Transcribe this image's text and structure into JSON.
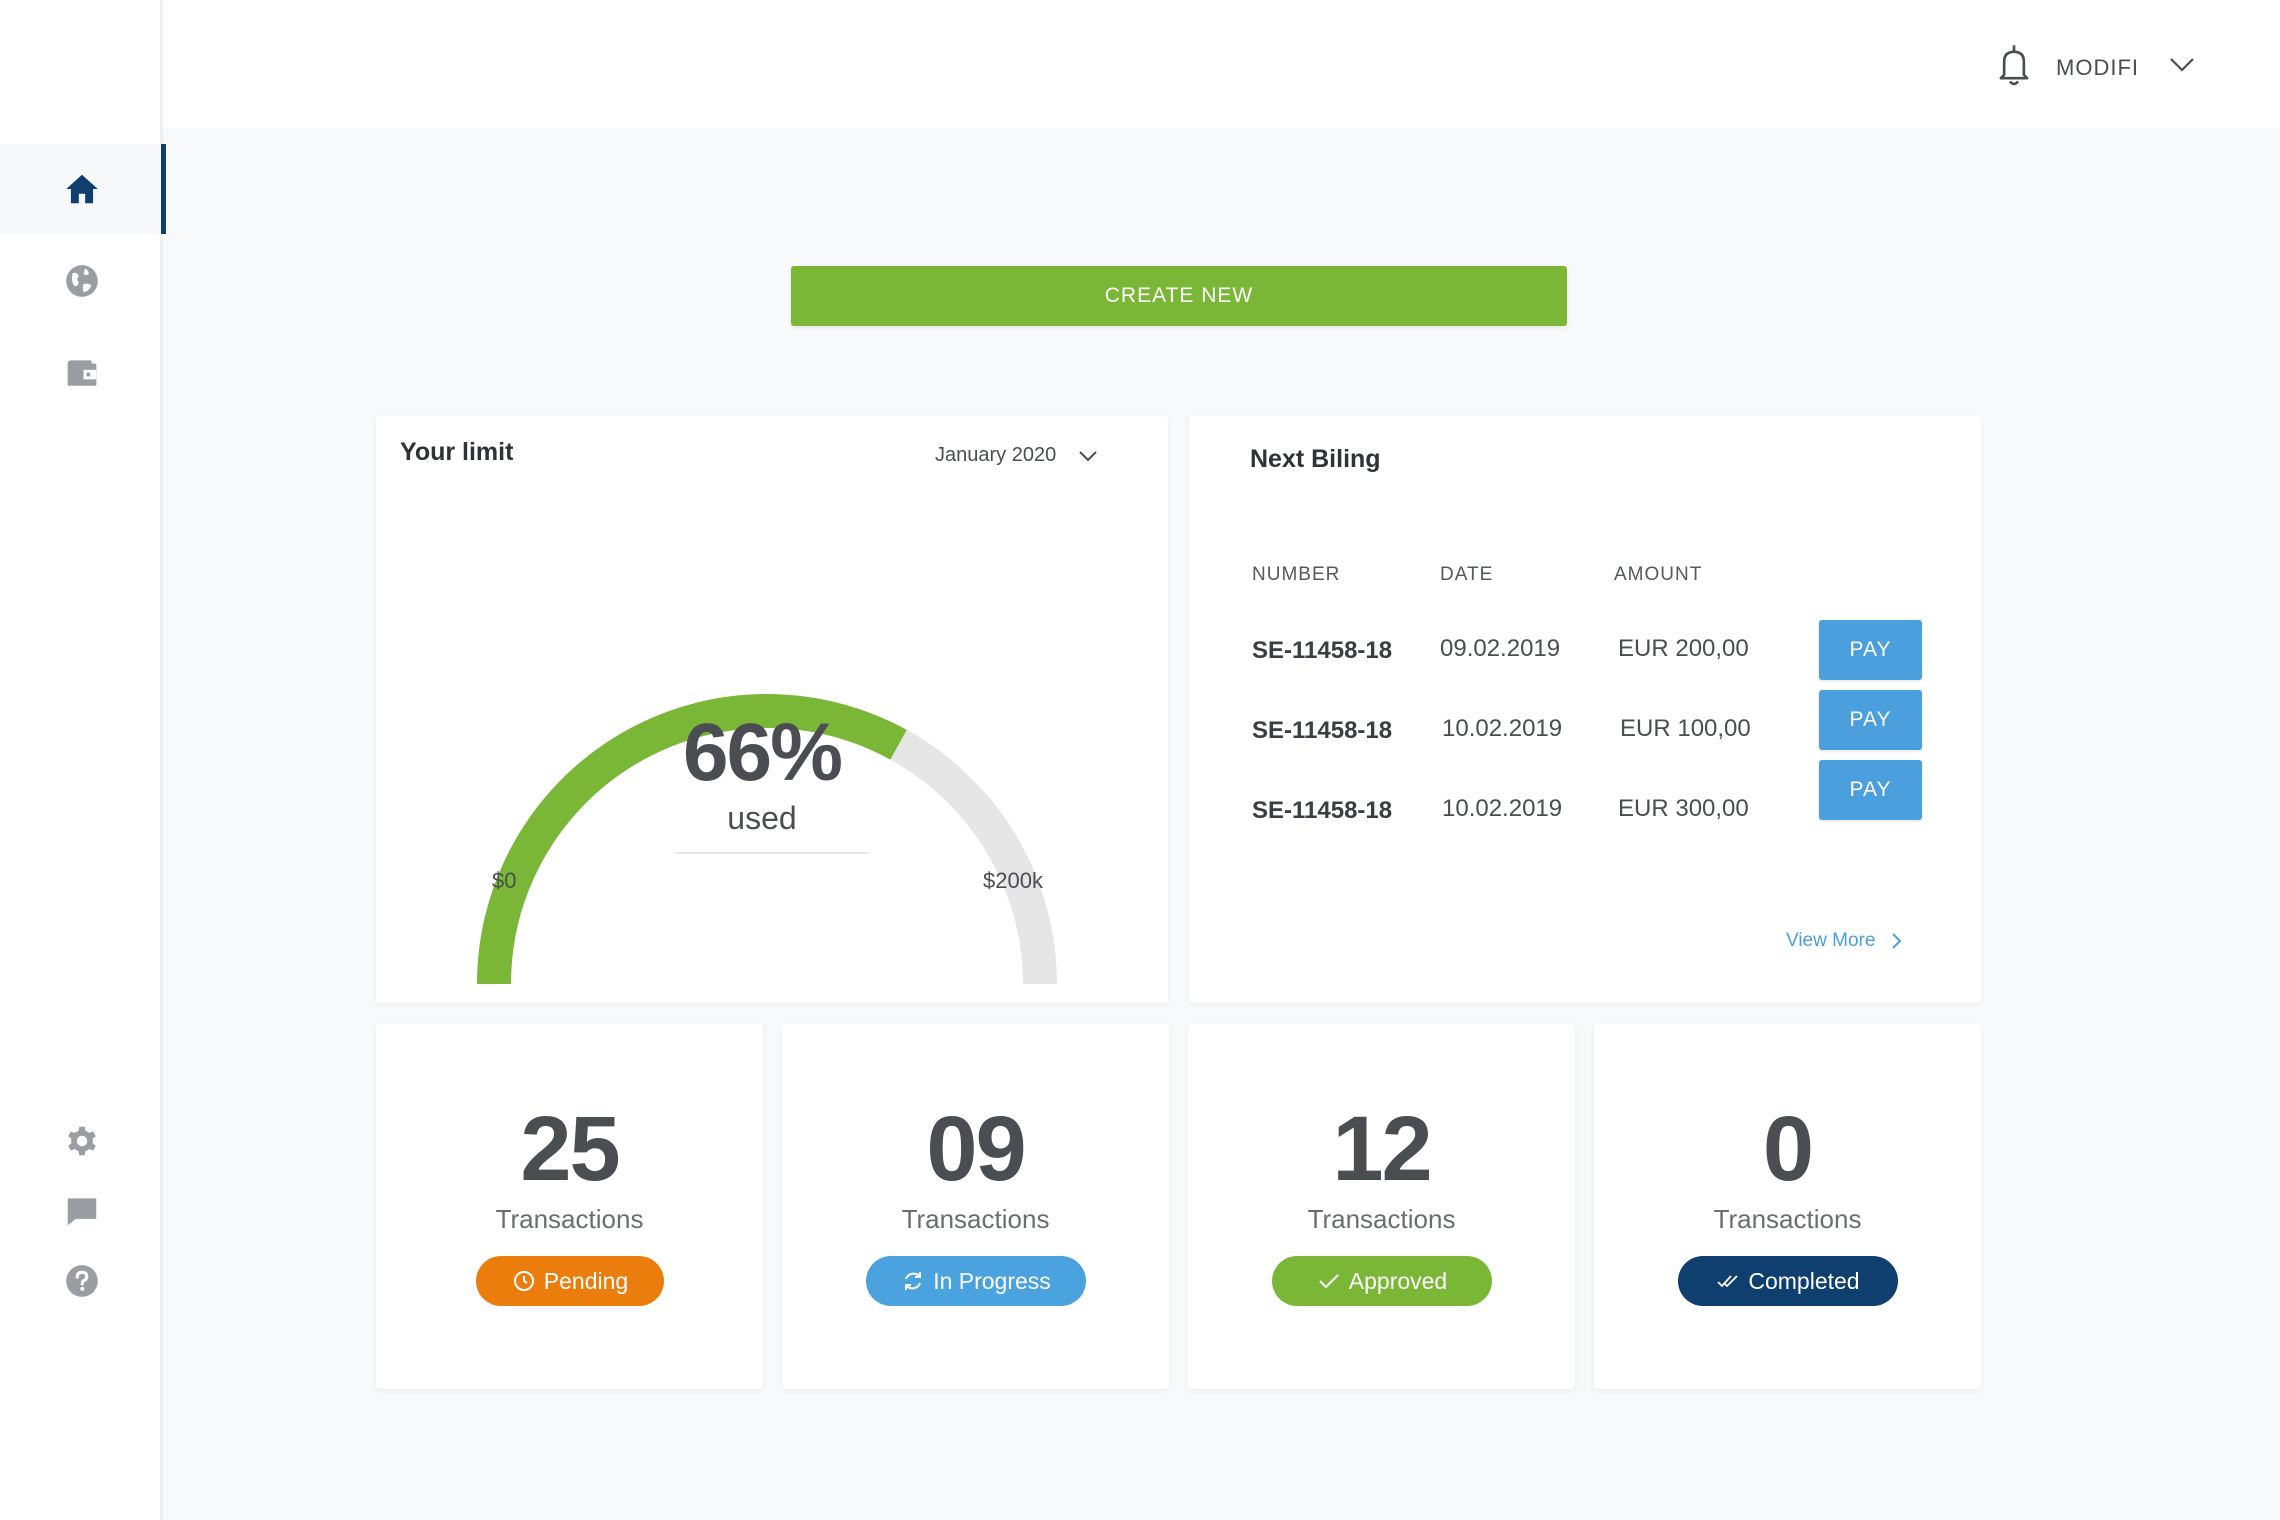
{
  "topbar": {
    "user_name": "MODIFI"
  },
  "sidebar": {
    "items": [
      {
        "name": "home",
        "icon": "home-icon",
        "active": true
      },
      {
        "name": "globe",
        "icon": "globe-icon",
        "active": false
      },
      {
        "name": "wallet",
        "icon": "wallet-icon",
        "active": false
      },
      {
        "name": "settings",
        "icon": "gear-icon",
        "active": false
      },
      {
        "name": "messages",
        "icon": "chat-icon",
        "active": false
      },
      {
        "name": "help",
        "icon": "help-icon",
        "active": false
      }
    ]
  },
  "actions": {
    "create_new": "CREATE NEW"
  },
  "limit": {
    "title": "Your limit",
    "period": "January 2020",
    "percent_used": 66,
    "percent_label": "66%",
    "used_label": "used",
    "min_label": "$0",
    "max_label": "$200k"
  },
  "billing": {
    "title": "Next Biling",
    "columns": [
      "NUMBER",
      "DATE",
      "AMOUNT"
    ],
    "rows": [
      {
        "number": "SE-11458-18",
        "date": "09.02.2019",
        "amount": "EUR 200,00",
        "action": "PAY"
      },
      {
        "number": "SE-11458-18",
        "date": "10.02.2019",
        "amount": "EUR 100,00",
        "action": "PAY"
      },
      {
        "number": "SE-11458-18",
        "date": "10.02.2019",
        "amount": "EUR 300,00",
        "action": "PAY"
      }
    ],
    "view_more": "View More"
  },
  "stats": [
    {
      "count": "25",
      "label": "Transactions",
      "status": "Pending",
      "icon": "clock-icon",
      "color": "#ea7d0c"
    },
    {
      "count": "09",
      "label": "Transactions",
      "status": "In Progress",
      "icon": "refresh-icon",
      "color": "#4aa3df"
    },
    {
      "count": "12",
      "label": "Transactions",
      "status": "Approved",
      "icon": "check-icon",
      "color": "#7ab737"
    },
    {
      "count": "0",
      "label": "Transactions",
      "status": "Completed",
      "icon": "double-check-icon",
      "color": "#0f3f6e"
    }
  ],
  "colors": {
    "accent_green": "#7ab737",
    "accent_blue": "#4a9fdc",
    "navy": "#0f3f6e",
    "gauge_track": "#e6e6e6"
  }
}
